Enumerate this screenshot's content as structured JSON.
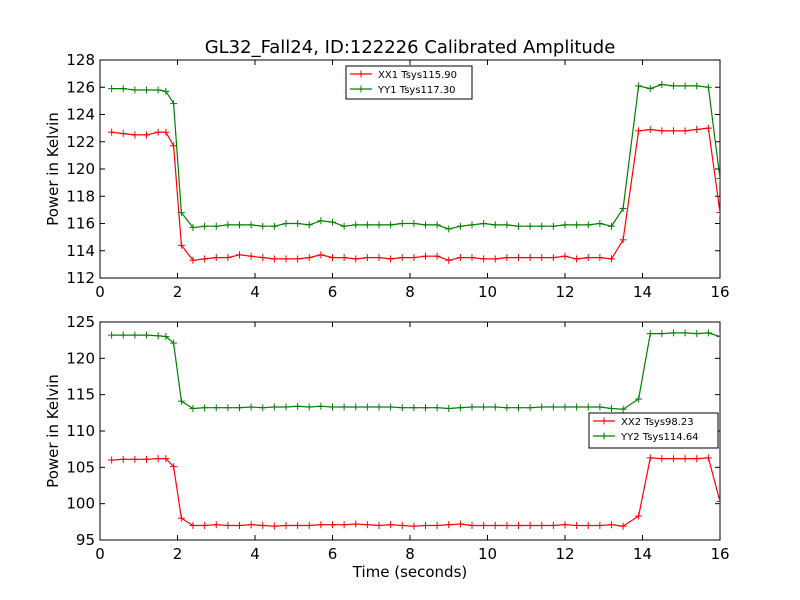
{
  "title": "GL32_Fall24, ID:122226 Calibrated Amplitude",
  "chart_data": [
    {
      "type": "line",
      "ylabel": "Power in Kelvin",
      "xlabel": "",
      "xlim": [
        0,
        16
      ],
      "ylim": [
        112,
        128
      ],
      "xticks": [
        0,
        2,
        4,
        6,
        8,
        10,
        12,
        14,
        16
      ],
      "yticks": [
        112,
        114,
        116,
        118,
        120,
        122,
        124,
        126,
        128
      ],
      "legend_position": "top-center",
      "x": [
        0.3,
        0.6,
        0.9,
        1.2,
        1.5,
        1.7,
        1.9,
        2.1,
        2.4,
        2.7,
        3.0,
        3.3,
        3.6,
        3.9,
        4.2,
        4.5,
        4.8,
        5.1,
        5.4,
        5.7,
        6.0,
        6.3,
        6.6,
        6.9,
        7.2,
        7.5,
        7.8,
        8.1,
        8.4,
        8.7,
        9.0,
        9.3,
        9.6,
        9.9,
        10.2,
        10.5,
        10.8,
        11.1,
        11.4,
        11.7,
        12.0,
        12.3,
        12.6,
        12.9,
        13.2,
        13.5,
        13.9,
        14.2,
        14.5,
        14.8,
        15.1,
        15.4,
        15.7,
        16.0
      ],
      "series": [
        {
          "name": "XX1 Tsys115.90",
          "color": "#ff0000",
          "values": [
            122.7,
            122.6,
            122.5,
            122.5,
            122.7,
            122.7,
            121.7,
            114.4,
            113.3,
            113.4,
            113.5,
            113.5,
            113.7,
            113.6,
            113.5,
            113.4,
            113.4,
            113.4,
            113.5,
            113.7,
            113.5,
            113.5,
            113.4,
            113.5,
            113.5,
            113.4,
            113.5,
            113.5,
            113.6,
            113.6,
            113.3,
            113.5,
            113.5,
            113.4,
            113.4,
            113.5,
            113.5,
            113.5,
            113.5,
            113.5,
            113.6,
            113.4,
            113.5,
            113.5,
            113.4,
            114.8,
            122.8,
            122.9,
            122.8,
            122.8,
            122.8,
            122.9,
            123.0,
            116.8
          ]
        },
        {
          "name": "YY1 Tsys117.30",
          "color": "#008000",
          "values": [
            125.9,
            125.9,
            125.8,
            125.8,
            125.8,
            125.7,
            124.8,
            116.8,
            115.7,
            115.8,
            115.8,
            115.9,
            115.9,
            115.9,
            115.8,
            115.8,
            116.0,
            116.0,
            115.9,
            116.2,
            116.1,
            115.8,
            115.9,
            115.9,
            115.9,
            115.9,
            116.0,
            116.0,
            115.9,
            115.9,
            115.6,
            115.8,
            115.9,
            116.0,
            115.9,
            115.9,
            115.8,
            115.8,
            115.8,
            115.8,
            115.9,
            115.9,
            115.9,
            116.0,
            115.8,
            117.1,
            126.1,
            125.9,
            126.2,
            126.1,
            126.1,
            126.1,
            126.0,
            119.3
          ]
        }
      ]
    },
    {
      "type": "line",
      "ylabel": "Power in Kelvin",
      "xlabel": "Time (seconds)",
      "xlim": [
        0,
        16
      ],
      "ylim": [
        95,
        125
      ],
      "xticks": [
        0,
        2,
        4,
        6,
        8,
        10,
        12,
        14,
        16
      ],
      "yticks": [
        95,
        100,
        105,
        110,
        115,
        120,
        125
      ],
      "legend_position": "center-right",
      "x": [
        0.3,
        0.6,
        0.9,
        1.2,
        1.5,
        1.7,
        1.9,
        2.1,
        2.4,
        2.7,
        3.0,
        3.3,
        3.6,
        3.9,
        4.2,
        4.5,
        4.8,
        5.1,
        5.4,
        5.7,
        6.0,
        6.3,
        6.6,
        6.9,
        7.2,
        7.5,
        7.8,
        8.1,
        8.4,
        8.7,
        9.0,
        9.3,
        9.6,
        9.9,
        10.2,
        10.5,
        10.8,
        11.1,
        11.4,
        11.7,
        12.0,
        12.3,
        12.6,
        12.9,
        13.2,
        13.5,
        13.9,
        14.2,
        14.5,
        14.8,
        15.1,
        15.4,
        15.7,
        16.0
      ],
      "series": [
        {
          "name": "XX2 Tsys98.23",
          "color": "#ff0000",
          "values": [
            106.0,
            106.1,
            106.1,
            106.1,
            106.2,
            106.2,
            105.1,
            98.0,
            97.0,
            97.0,
            97.1,
            97.0,
            97.0,
            97.1,
            97.0,
            96.9,
            97.0,
            97.0,
            97.0,
            97.1,
            97.1,
            97.1,
            97.2,
            97.1,
            97.0,
            97.1,
            97.0,
            96.9,
            97.0,
            97.0,
            97.1,
            97.2,
            97.0,
            97.0,
            97.0,
            97.0,
            97.0,
            97.0,
            97.0,
            97.0,
            97.1,
            97.0,
            97.0,
            97.0,
            97.1,
            96.9,
            98.3,
            106.3,
            106.2,
            106.2,
            106.2,
            106.2,
            106.3,
            100.3
          ]
        },
        {
          "name": "YY2 Tsys114.64",
          "color": "#008000",
          "values": [
            123.2,
            123.2,
            123.2,
            123.2,
            123.1,
            123.0,
            122.1,
            114.1,
            113.1,
            113.2,
            113.2,
            113.2,
            113.2,
            113.3,
            113.2,
            113.3,
            113.3,
            113.4,
            113.3,
            113.4,
            113.3,
            113.3,
            113.3,
            113.3,
            113.3,
            113.3,
            113.2,
            113.2,
            113.2,
            113.2,
            113.1,
            113.2,
            113.3,
            113.3,
            113.3,
            113.2,
            113.2,
            113.2,
            113.3,
            113.3,
            113.3,
            113.3,
            113.3,
            113.3,
            113.1,
            113.0,
            114.4,
            123.4,
            123.4,
            123.5,
            123.5,
            123.4,
            123.5,
            123.0
          ]
        }
      ]
    }
  ]
}
